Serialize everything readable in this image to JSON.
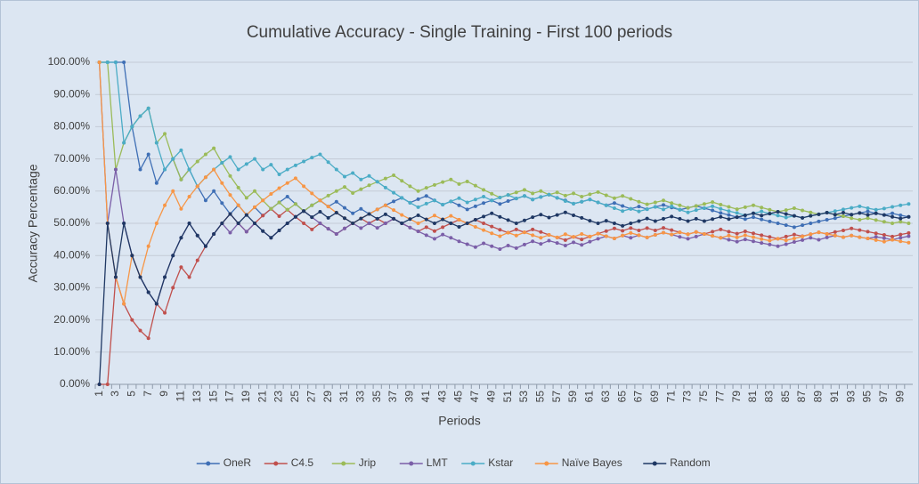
{
  "chart_data": {
    "type": "line",
    "title": "Cumulative Accuracy - Single Training - First 100 periods",
    "x_label": "Periods",
    "y_label": "Accuracy Percentage",
    "categories": [
      1,
      null,
      3,
      null,
      5,
      null,
      7,
      null,
      9,
      null,
      11,
      null,
      13,
      null,
      15,
      null,
      17,
      null,
      19,
      null,
      21,
      null,
      23,
      null,
      25,
      null,
      27,
      null,
      29,
      null,
      31,
      null,
      33,
      null,
      35,
      null,
      37,
      null,
      39,
      null,
      41,
      null,
      43,
      null,
      45,
      null,
      47,
      null,
      49,
      null,
      51,
      null,
      53,
      null,
      55,
      null,
      57,
      null,
      59,
      null,
      61,
      null,
      63,
      null,
      65,
      null,
      67,
      null,
      69,
      null,
      71,
      null,
      73,
      null,
      75,
      null,
      77,
      null,
      79,
      null,
      81,
      null,
      83,
      null,
      85,
      null,
      87,
      null,
      89,
      null,
      91,
      null,
      93,
      null,
      95,
      null,
      97,
      null,
      99,
      null
    ],
    "ylim": [
      0,
      100
    ],
    "yticks": [
      {
        "value": 0,
        "label": "0.00%"
      },
      {
        "value": 10,
        "label": "10.00%"
      },
      {
        "value": 20,
        "label": "20.00%"
      },
      {
        "value": 30,
        "label": "30.00%"
      },
      {
        "value": 40,
        "label": "40.00%"
      },
      {
        "value": 50,
        "label": "50.00%"
      },
      {
        "value": 60,
        "label": "60.00%"
      },
      {
        "value": 70,
        "label": "70.00%"
      },
      {
        "value": 80,
        "label": "80.00%"
      },
      {
        "value": 90,
        "label": "90.00%"
      },
      {
        "value": 100,
        "label": "100.00%"
      }
    ],
    "grid": true,
    "legend": "bottom",
    "series": [
      {
        "name": "OneR",
        "color": "#3f6fb5",
        "values": [
          100,
          100,
          100,
          100,
          80,
          66.7,
          71.4,
          62.5,
          66.7,
          70,
          63.6,
          66.7,
          61.5,
          57.1,
          60,
          56.3,
          52.9,
          55.6,
          52.6,
          55,
          52.4,
          54.5,
          56.5,
          58.3,
          56,
          53.8,
          55.6,
          57.1,
          55.2,
          56.7,
          54.8,
          53.1,
          54.5,
          52.9,
          54.3,
          55.6,
          56.8,
          57.9,
          56.4,
          57.5,
          58.5,
          57.1,
          55.8,
          56.8,
          55.6,
          54.3,
          55.3,
          56.3,
          57.1,
          56,
          56.9,
          57.7,
          58.5,
          57.4,
          58.2,
          58.9,
          57.9,
          57.1,
          56.1,
          56.7,
          57.4,
          56.5,
          55.6,
          56.3,
          55.4,
          54.5,
          55.2,
          54.4,
          55.1,
          55.7,
          54.9,
          54.2,
          54.8,
          55.4,
          54.7,
          54,
          53.2,
          52.6,
          51.9,
          51.3,
          51.9,
          51.2,
          50.6,
          50,
          49.4,
          48.8,
          49.4,
          50,
          50.6,
          51.1,
          51.6,
          52.2,
          52.7,
          53.2,
          53.7,
          53.1,
          52.6,
          53.1,
          52.5,
          52
        ]
      },
      {
        "name": "C4.5",
        "color": "#c0504d",
        "values": [
          0,
          0,
          33.3,
          25,
          20,
          16.7,
          14.3,
          25,
          22.2,
          30,
          36.4,
          33.3,
          38.5,
          42.9,
          46.7,
          50,
          52.9,
          50,
          47.4,
          50,
          52.4,
          54.5,
          52.2,
          54.2,
          52,
          50,
          48.1,
          50,
          48.3,
          46.7,
          48.4,
          50,
          51.5,
          50,
          51.4,
          50,
          51.4,
          50,
          48.7,
          47.5,
          48.8,
          47.6,
          48.8,
          50,
          51.1,
          50,
          51.1,
          50,
          49,
          48,
          47.1,
          48.1,
          47.2,
          48.1,
          47.3,
          46.4,
          45.6,
          44.8,
          45.8,
          45,
          45.9,
          46.8,
          47.6,
          48.4,
          47.7,
          48.5,
          47.8,
          48.5,
          47.8,
          48.6,
          47.9,
          47.2,
          46.6,
          47.3,
          46.7,
          47.4,
          48.1,
          47.4,
          46.8,
          47.5,
          46.9,
          46.3,
          45.8,
          45.2,
          45.9,
          46.5,
          46,
          46.6,
          47.2,
          46.7,
          47.3,
          47.8,
          48.4,
          47.9,
          47.4,
          46.9,
          46.4,
          45.9,
          46.5,
          47
        ]
      },
      {
        "name": "Jrip",
        "color": "#9bbb59",
        "values": [
          100,
          100,
          66.7,
          75,
          80,
          83.3,
          85.7,
          75,
          77.8,
          70,
          63.6,
          66.7,
          69.2,
          71.4,
          73.3,
          68.8,
          64.7,
          61.1,
          57.9,
          60,
          57.1,
          54.5,
          56.5,
          54.2,
          56,
          53.8,
          55.6,
          57.1,
          58.6,
          60,
          61.3,
          59.4,
          60.6,
          61.8,
          62.9,
          63.9,
          64.9,
          63.2,
          61.5,
          60,
          61,
          61.9,
          62.8,
          63.6,
          62.2,
          63,
          61.7,
          60.4,
          59.2,
          58,
          58.8,
          59.6,
          60.4,
          59.3,
          60,
          58.9,
          59.6,
          58.6,
          59.3,
          58.3,
          59,
          59.7,
          58.7,
          57.8,
          58.5,
          57.6,
          56.7,
          55.9,
          56.5,
          57.1,
          56.3,
          55.6,
          54.8,
          55.4,
          56,
          56.6,
          55.8,
          55.1,
          54.4,
          55,
          55.6,
          54.9,
          54.2,
          53.6,
          54.1,
          54.7,
          54,
          53.4,
          52.8,
          53.3,
          52.7,
          52.2,
          51.6,
          51.1,
          51.6,
          51,
          50.5,
          50,
          50.5,
          50
        ]
      },
      {
        "name": "LMT",
        "color": "#7b5fa8",
        "values": [
          100,
          50,
          66.7,
          50,
          40,
          33.3,
          28.6,
          25,
          33.3,
          40,
          45.5,
          50,
          46.2,
          42.9,
          46.7,
          50,
          47.1,
          50,
          47.4,
          50,
          47.6,
          45.5,
          47.8,
          50,
          52,
          53.8,
          51.9,
          50,
          48.3,
          46.7,
          48.4,
          50,
          48.5,
          50,
          48.6,
          50,
          51.4,
          50,
          48.7,
          47.5,
          46.3,
          45.2,
          46.5,
          45.5,
          44.4,
          43.5,
          42.6,
          43.8,
          42.9,
          42,
          43.1,
          42.3,
          43.4,
          44.4,
          43.6,
          44.6,
          43.9,
          43.1,
          44.1,
          43.3,
          44.3,
          45.2,
          46,
          45.3,
          46.2,
          45.5,
          46.3,
          45.6,
          46.4,
          47.1,
          46.5,
          45.8,
          45.2,
          45.9,
          46.7,
          46.1,
          45.5,
          44.9,
          44.3,
          45,
          44.4,
          43.9,
          43.4,
          42.9,
          43.5,
          44.2,
          44.8,
          45.5,
          44.9,
          45.6,
          46.2,
          45.7,
          46.2,
          45.7,
          45.3,
          45.8,
          45.4,
          44.9,
          45.5,
          46
        ]
      },
      {
        "name": "Kstar",
        "color": "#4bacc6",
        "values": [
          100,
          100,
          100,
          75,
          80,
          83.3,
          85.7,
          75,
          66.7,
          70,
          72.7,
          66.7,
          61.5,
          64.3,
          66.7,
          68.8,
          70.6,
          66.7,
          68.4,
          70,
          66.7,
          68.2,
          65.2,
          66.7,
          68,
          69.2,
          70.4,
          71.4,
          69,
          66.7,
          64.5,
          65.6,
          63.6,
          64.7,
          62.9,
          61.1,
          59.5,
          57.9,
          56.4,
          55,
          56.1,
          57.1,
          55.8,
          56.8,
          57.8,
          56.5,
          57.4,
          58.3,
          57.1,
          58,
          58.8,
          57.7,
          58.5,
          57.4,
          58.2,
          58.9,
          57.9,
          56.9,
          56.1,
          56.7,
          57.4,
          56.5,
          55.6,
          54.7,
          53.8,
          54.5,
          53.7,
          54.4,
          55.1,
          54.3,
          55.3,
          54.2,
          53.4,
          54.1,
          54.7,
          55.3,
          54.5,
          53.8,
          53.2,
          52.5,
          53.1,
          53.7,
          53,
          52.4,
          51.8,
          52.3,
          51.7,
          52.3,
          52.8,
          53.3,
          53.8,
          54.3,
          54.8,
          55.3,
          54.7,
          54.2,
          54.6,
          55.1,
          55.6,
          56
        ]
      },
      {
        "name": "Naïve Bayes",
        "color": "#f79646",
        "values": [
          100,
          50,
          33.3,
          25,
          40,
          33.3,
          42.9,
          50,
          55.6,
          60,
          54.5,
          58.3,
          61.5,
          64.3,
          66.7,
          62.5,
          58.8,
          55.6,
          52.6,
          55,
          57.1,
          59.1,
          60.9,
          62.5,
          64,
          61.5,
          59.3,
          57.1,
          55.2,
          53.3,
          51.6,
          50,
          51.5,
          52.9,
          54.3,
          55.6,
          54.1,
          52.6,
          51.3,
          50,
          51.2,
          52.4,
          51.2,
          52.3,
          51.1,
          50,
          48.9,
          47.9,
          46.9,
          46,
          47.1,
          46.2,
          47.2,
          46.3,
          45.5,
          46.4,
          45.6,
          46.6,
          45.8,
          46.7,
          45.9,
          46.8,
          46,
          45.3,
          46.2,
          47,
          46.3,
          45.6,
          46.4,
          47.1,
          46.5,
          47.2,
          46.6,
          47.3,
          46.7,
          46.1,
          45.5,
          46.2,
          45.6,
          46.3,
          45.7,
          45.1,
          44.6,
          45.2,
          44.7,
          45.3,
          45.9,
          46.6,
          47.2,
          46.7,
          46.2,
          45.7,
          46.2,
          45.7,
          45.3,
          44.8,
          44.3,
          44.9,
          44.4,
          44
        ]
      },
      {
        "name": "Random",
        "color": "#1f3864",
        "values": [
          0,
          50,
          33.3,
          50,
          40,
          33.3,
          28.6,
          25,
          33.3,
          40,
          45.5,
          50,
          46.2,
          42.9,
          46.7,
          50,
          52.9,
          50,
          52.6,
          50,
          47.6,
          45.5,
          47.8,
          50,
          52,
          53.8,
          51.9,
          53.6,
          51.7,
          53.3,
          51.6,
          50,
          51.5,
          52.9,
          51.4,
          52.8,
          51.4,
          50,
          51.3,
          52.5,
          51.2,
          50,
          51.2,
          50,
          48.9,
          50,
          51.1,
          52.1,
          53.1,
          52,
          51,
          50,
          50.9,
          51.9,
          52.7,
          51.8,
          52.6,
          53.4,
          52.5,
          51.7,
          50.8,
          50,
          50.8,
          50,
          49.2,
          50,
          50.7,
          51.5,
          50.7,
          51.4,
          52.1,
          51.4,
          50.7,
          51.4,
          50.7,
          51.3,
          52,
          51.3,
          51.9,
          52.5,
          53.1,
          52.4,
          53,
          53.6,
          52.9,
          52.3,
          51.7,
          52.3,
          52.8,
          53.3,
          52.7,
          53.3,
          52.7,
          53.2,
          52.6,
          53.1,
          52.6,
          52,
          51.5,
          52
        ]
      }
    ]
  }
}
